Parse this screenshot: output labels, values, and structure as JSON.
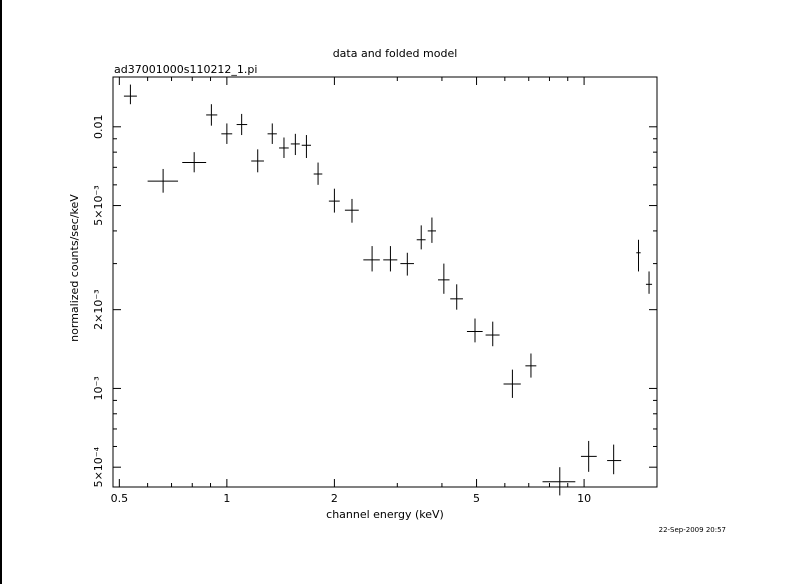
{
  "chart_data": {
    "type": "scatter",
    "title": "data and folded model",
    "subtitle": "ad37001000s110212_1.pi",
    "xlabel": "channel energy (keV)",
    "ylabel": "normalized counts/sec/keV",
    "x_scale": "log",
    "y_scale": "log",
    "xlim": [
      0.48,
      16
    ],
    "ylim": [
      0.00042,
      0.0155
    ],
    "x_ticks": [
      {
        "value": 0.5,
        "label": "0.5"
      },
      {
        "value": 1,
        "label": "1"
      },
      {
        "value": 2,
        "label": "2"
      },
      {
        "value": 5,
        "label": "5"
      },
      {
        "value": 10,
        "label": "10"
      }
    ],
    "y_ticks": [
      {
        "value": 0.0005,
        "label": "5×10⁻⁴"
      },
      {
        "value": 0.001,
        "label": "10⁻³"
      },
      {
        "value": 0.002,
        "label": "2×10⁻³"
      },
      {
        "value": 0.005,
        "label": "5×10⁻³"
      },
      {
        "value": 0.01,
        "label": "0.01"
      }
    ],
    "grid": false,
    "series": [
      {
        "points": [
          {
            "x": 0.537,
            "xlo": 0.515,
            "xhi": 0.56,
            "y": 0.0131,
            "ylo": 0.0122,
            "yhi": 0.0145
          },
          {
            "x": 0.663,
            "xlo": 0.6,
            "xhi": 0.73,
            "y": 0.0062,
            "ylo": 0.0056,
            "yhi": 0.0069
          },
          {
            "x": 0.81,
            "xlo": 0.75,
            "xhi": 0.875,
            "y": 0.0073,
            "ylo": 0.0067,
            "yhi": 0.008
          },
          {
            "x": 0.905,
            "xlo": 0.875,
            "xhi": 0.94,
            "y": 0.0111,
            "ylo": 0.0101,
            "yhi": 0.0122
          },
          {
            "x": 1.0,
            "xlo": 0.965,
            "xhi": 1.035,
            "y": 0.0094,
            "ylo": 0.0086,
            "yhi": 0.0103
          },
          {
            "x": 1.1,
            "xlo": 1.065,
            "xhi": 1.14,
            "y": 0.0102,
            "ylo": 0.0093,
            "yhi": 0.0112
          },
          {
            "x": 1.22,
            "xlo": 1.17,
            "xhi": 1.27,
            "y": 0.0074,
            "ylo": 0.0067,
            "yhi": 0.0082
          },
          {
            "x": 1.34,
            "xlo": 1.3,
            "xhi": 1.38,
            "y": 0.0094,
            "ylo": 0.0086,
            "yhi": 0.0103
          },
          {
            "x": 1.445,
            "xlo": 1.4,
            "xhi": 1.49,
            "y": 0.0083,
            "ylo": 0.0076,
            "yhi": 0.0091
          },
          {
            "x": 1.555,
            "xlo": 1.51,
            "xhi": 1.6,
            "y": 0.0086,
            "ylo": 0.0078,
            "yhi": 0.0094
          },
          {
            "x": 1.67,
            "xlo": 1.62,
            "xhi": 1.72,
            "y": 0.0085,
            "ylo": 0.0076,
            "yhi": 0.0093
          },
          {
            "x": 1.8,
            "xlo": 1.75,
            "xhi": 1.85,
            "y": 0.0066,
            "ylo": 0.006,
            "yhi": 0.0073
          },
          {
            "x": 2.0,
            "xlo": 1.93,
            "xhi": 2.07,
            "y": 0.0052,
            "ylo": 0.0047,
            "yhi": 0.0058
          },
          {
            "x": 2.24,
            "xlo": 2.14,
            "xhi": 2.34,
            "y": 0.0048,
            "ylo": 0.0043,
            "yhi": 0.0053
          },
          {
            "x": 2.55,
            "xlo": 2.41,
            "xhi": 2.68,
            "y": 0.0031,
            "ylo": 0.0028,
            "yhi": 0.0035
          },
          {
            "x": 2.87,
            "xlo": 2.74,
            "xhi": 3.0,
            "y": 0.0031,
            "ylo": 0.0028,
            "yhi": 0.0035
          },
          {
            "x": 3.2,
            "xlo": 3.06,
            "xhi": 3.34,
            "y": 0.003,
            "ylo": 0.0027,
            "yhi": 0.0033
          },
          {
            "x": 3.5,
            "xlo": 3.4,
            "xhi": 3.6,
            "y": 0.0037,
            "ylo": 0.0034,
            "yhi": 0.0042
          },
          {
            "x": 3.75,
            "xlo": 3.65,
            "xhi": 3.85,
            "y": 0.004,
            "ylo": 0.0036,
            "yhi": 0.0045
          },
          {
            "x": 4.05,
            "xlo": 3.9,
            "xhi": 4.2,
            "y": 0.0026,
            "ylo": 0.0023,
            "yhi": 0.003
          },
          {
            "x": 4.4,
            "xlo": 4.22,
            "xhi": 4.58,
            "y": 0.0022,
            "ylo": 0.002,
            "yhi": 0.0025
          },
          {
            "x": 4.95,
            "xlo": 4.7,
            "xhi": 5.2,
            "y": 0.00165,
            "ylo": 0.0015,
            "yhi": 0.00185
          },
          {
            "x": 5.55,
            "xlo": 5.3,
            "xhi": 5.8,
            "y": 0.0016,
            "ylo": 0.00145,
            "yhi": 0.0018
          },
          {
            "x": 6.3,
            "xlo": 5.95,
            "xhi": 6.65,
            "y": 0.00104,
            "ylo": 0.00092,
            "yhi": 0.00118
          },
          {
            "x": 7.1,
            "xlo": 6.85,
            "xhi": 7.35,
            "y": 0.00122,
            "ylo": 0.0011,
            "yhi": 0.00136
          },
          {
            "x": 8.55,
            "xlo": 7.65,
            "xhi": 9.45,
            "y": 0.00044,
            "ylo": 0.00039,
            "yhi": 0.0005
          },
          {
            "x": 10.3,
            "xlo": 9.8,
            "xhi": 10.85,
            "y": 0.00055,
            "ylo": 0.00048,
            "yhi": 0.00063
          },
          {
            "x": 12.1,
            "xlo": 11.6,
            "xhi": 12.7,
            "y": 0.00053,
            "ylo": 0.00047,
            "yhi": 0.00061
          },
          {
            "x": 14.2,
            "xlo": 14.0,
            "xhi": 14.4,
            "y": 0.0033,
            "ylo": 0.0028,
            "yhi": 0.0037
          },
          {
            "x": 15.2,
            "xlo": 14.9,
            "xhi": 15.5,
            "y": 0.0025,
            "ylo": 0.0023,
            "yhi": 0.0028
          }
        ]
      }
    ]
  },
  "timestamp": "22-Sep-2009 20:57"
}
